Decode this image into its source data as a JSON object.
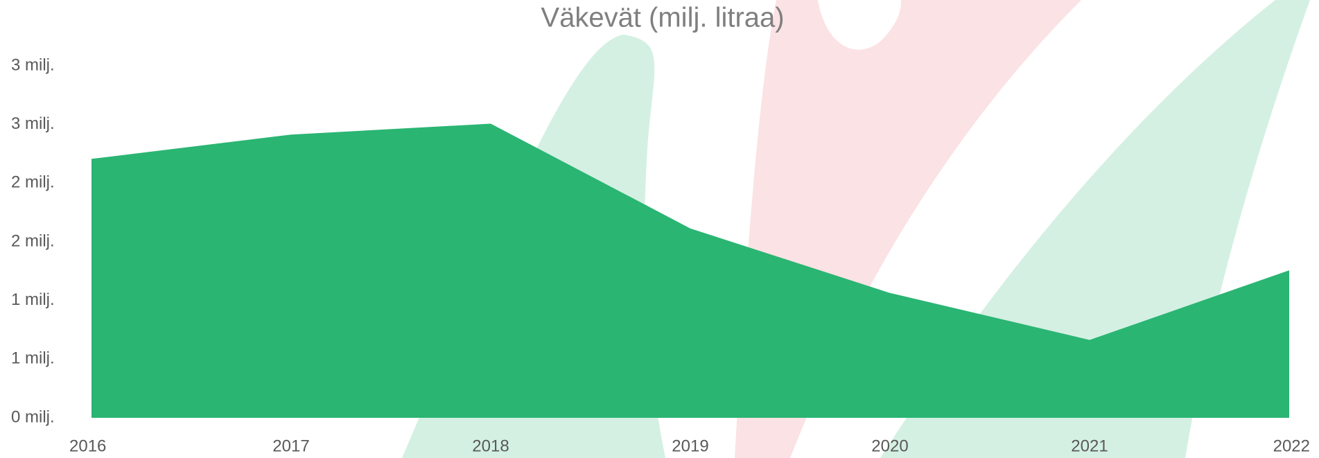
{
  "chart_data": {
    "type": "area",
    "title": "Väkevät (milj. litraa)",
    "categories": [
      "2016",
      "2017",
      "2018",
      "2019",
      "2020",
      "2021",
      "2022"
    ],
    "values": [
      2.207,
      2.414,
      2.507,
      1.614,
      1.064,
      0.664,
      1.257
    ],
    "color": "#2ab573",
    "ylim": [
      0,
      3
    ],
    "yticks": [
      {
        "value": 0,
        "label": "0 milj."
      },
      {
        "value": 0.5,
        "label": "1 milj."
      },
      {
        "value": 1,
        "label": "1 milj."
      },
      {
        "value": 1.5,
        "label": "2 milj."
      },
      {
        "value": 2,
        "label": "2 milj."
      },
      {
        "value": 2.5,
        "label": "3 milj."
      },
      {
        "value": 3,
        "label": "3 milj."
      }
    ],
    "grid": false
  }
}
